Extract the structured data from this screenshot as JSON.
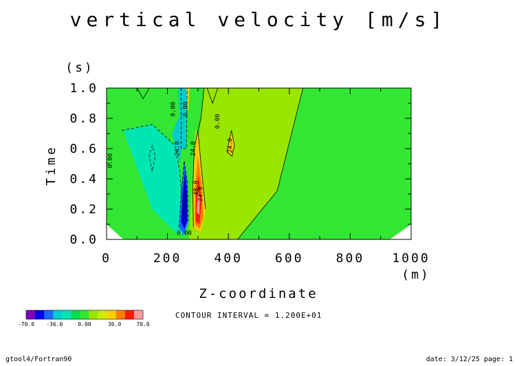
{
  "chart_data": {
    "type": "heatmap",
    "title": "vertical velocity [m/s]",
    "xlabel": "Z-coordinate",
    "x_unit": "(m)",
    "ylabel": "Time",
    "y_unit": "(s)",
    "xlim": [
      0,
      1000
    ],
    "ylim": [
      0.0,
      1.0
    ],
    "x_ticks": [
      "0",
      "200",
      "400",
      "600",
      "800",
      "1000"
    ],
    "y_ticks": [
      "0.0",
      "0.2",
      "0.4",
      "0.6",
      "0.8",
      "1.0"
    ],
    "contour_interval": "CONTOUR INTERVAL = 1.200E+01",
    "contour_labels": [
      "0.00",
      "0.00",
      "0.00",
      "0.00",
      "0.00",
      "24.0",
      "24.0",
      "24.0",
      "48.0",
      "24.0"
    ],
    "colorbar": {
      "min": -70.0,
      "max": 70.0,
      "tick_labels": [
        "-70.0",
        "-36.0",
        "0.00",
        "36.0",
        "70.0"
      ],
      "colors": [
        "#7f00bf",
        "#0000e6",
        "#1a66ff",
        "#00cccc",
        "#00e6b3",
        "#00dc50",
        "#33e633",
        "#99e600",
        "#cdeb00",
        "#ffcc00",
        "#ff8000",
        "#ff1a00",
        "#ff9999"
      ]
    },
    "colors": {
      "neutral_green": "#33e633",
      "positive_yellow_green": "#99e600",
      "negative_cyan": "#00e6b3"
    },
    "features": [
      {
        "name": "strong downdraft core",
        "z": 255,
        "t": 0.25,
        "value": -70
      },
      {
        "name": "strong updraft core",
        "z": 305,
        "t": 0.25,
        "value": 70
      },
      {
        "name": "weak positive cell",
        "z": 405,
        "t": 0.62,
        "value": 24
      }
    ]
  },
  "footer": {
    "left": "gtool4/Fortran90",
    "right": "date: 3/12/25 page: 1"
  }
}
